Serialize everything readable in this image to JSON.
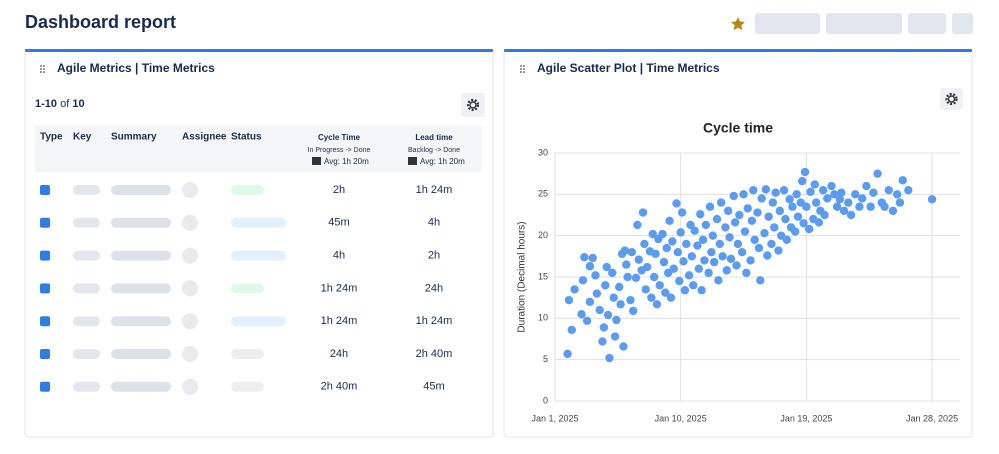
{
  "header": {
    "title": "Dashboard report"
  },
  "left_panel": {
    "title": "Agile Metrics | Time Metrics",
    "pagination": {
      "range": "1-10",
      "of": "of",
      "total": "10"
    },
    "columns": {
      "type": "Type",
      "key": "Key",
      "summary": "Summary",
      "assignee": "Assignee",
      "status": "Status",
      "cycle": {
        "label": "Cycle Time",
        "sub": "In Progress -> Done",
        "avg": "Avg: 1h 20m"
      },
      "lead": {
        "label": "Lead time",
        "sub": "Backlog -> Done",
        "avg": "Avg: 1h 20m"
      }
    },
    "rows": [
      {
        "cycle": "2h",
        "lead": "1h 24m",
        "status_color": "#dcfce7"
      },
      {
        "cycle": "45m",
        "lead": "4h",
        "status_color": "#e0f0ff"
      },
      {
        "cycle": "4h",
        "lead": "2h",
        "status_color": "#e0f0ff"
      },
      {
        "cycle": "1h 24m",
        "lead": "24h",
        "status_color": "#dcfce7"
      },
      {
        "cycle": "1h 24m",
        "lead": "1h 24m",
        "status_color": "#e0f0ff"
      },
      {
        "cycle": "24h",
        "lead": "2h 40m",
        "status_color": "#eeeeee"
      },
      {
        "cycle": "2h 40m",
        "lead": "45m",
        "status_color": "#eeeeee"
      }
    ]
  },
  "right_panel": {
    "title": "Agile Scatter Plot | Time Metrics"
  },
  "chart_data": {
    "type": "scatter",
    "title": "Cycle time",
    "y_label": "Duration (Decimal hours)",
    "color": "#5b9cf2",
    "grid": true,
    "xlim": [
      1,
      30
    ],
    "xticks": [
      {
        "value": 1,
        "label": "Jan 1, 2025"
      },
      {
        "value": 10,
        "label": "Jan 10, 2025"
      },
      {
        "value": 19,
        "label": "Jan 19, 2025"
      },
      {
        "value": 28,
        "label": "Jan 28, 2025"
      }
    ],
    "ylim": [
      0,
      30
    ],
    "yticks": [
      0,
      5,
      10,
      15,
      20,
      25,
      30
    ],
    "x": [
      1.9,
      2.0,
      2.2,
      2.4,
      2.9,
      3.0,
      3.1,
      3.3,
      3.5,
      3.7,
      3.9,
      3.5,
      4.0,
      4.2,
      4.4,
      4.5,
      4.6,
      4.7,
      4.8,
      4.9,
      5.1,
      5.2,
      5.3,
      5.4,
      5.6,
      5.7,
      5.8,
      5.9,
      6.0,
      6.1,
      6.2,
      6.4,
      6.5,
      6.6,
      6.8,
      6.9,
      7.0,
      7.2,
      7.3,
      7.4,
      7.5,
      7.6,
      7.8,
      7.9,
      8.0,
      8.1,
      8.2,
      8.3,
      8.4,
      8.5,
      8.7,
      8.8,
      8.9,
      9.0,
      9.1,
      9.2,
      9.3,
      9.4,
      9.5,
      9.7,
      9.8,
      9.9,
      10.0,
      10.1,
      10.2,
      10.3,
      10.4,
      10.6,
      10.7,
      10.8,
      10.9,
      11.0,
      11.2,
      11.3,
      11.4,
      11.5,
      11.6,
      11.7,
      11.8,
      12.0,
      12.1,
      12.2,
      12.3,
      12.4,
      12.6,
      12.7,
      12.8,
      12.9,
      13.0,
      13.2,
      13.3,
      13.4,
      13.5,
      13.6,
      13.8,
      13.9,
      14.0,
      14.1,
      14.2,
      14.4,
      14.5,
      14.6,
      14.7,
      14.8,
      15.0,
      15.1,
      15.2,
      15.3,
      15.5,
      15.6,
      15.7,
      15.8,
      16.0,
      16.1,
      16.2,
      16.3,
      16.5,
      16.6,
      16.7,
      16.8,
      17.0,
      17.1,
      17.2,
      17.4,
      17.5,
      17.6,
      17.8,
      17.9,
      18.0,
      18.2,
      18.3,
      18.4,
      18.6,
      18.7,
      18.8,
      18.9,
      19.0,
      19.2,
      19.3,
      19.5,
      19.6,
      19.7,
      19.9,
      20.0,
      20.2,
      20.3,
      20.5,
      20.8,
      21.0,
      21.2,
      21.4,
      21.5,
      21.7,
      22.0,
      22.2,
      22.5,
      22.8,
      23.0,
      23.3,
      23.6,
      23.8,
      24.1,
      24.4,
      24.6,
      24.9,
      25.2,
      25.5,
      25.7,
      25.9,
      26.3,
      28.0
    ],
    "values": [
      5.7,
      12.2,
      8.6,
      13.5,
      10.5,
      14.6,
      17.4,
      9.7,
      16.3,
      17.3,
      15.2,
      12.0,
      13.0,
      11.0,
      7.2,
      8.9,
      14.0,
      16.2,
      10.4,
      5.2,
      15.5,
      12.5,
      7.8,
      9.8,
      13.8,
      11.7,
      17.8,
      6.6,
      18.2,
      16.5,
      15.0,
      12.2,
      18.0,
      10.9,
      14.9,
      21.3,
      17.1,
      15.8,
      22.8,
      19.0,
      13.5,
      16.2,
      18.1,
      12.5,
      20.2,
      15.0,
      17.8,
      11.7,
      19.6,
      14.0,
      20.2,
      16.8,
      13.1,
      18.5,
      15.5,
      21.8,
      12.5,
      19.3,
      16.0,
      23.9,
      18.0,
      14.5,
      20.4,
      22.8,
      16.9,
      13.4,
      19.0,
      15.2,
      21.3,
      17.5,
      14.0,
      20.6,
      18.8,
      16.0,
      22.6,
      13.4,
      19.5,
      17.0,
      21.3,
      15.5,
      23.5,
      18.0,
      20.0,
      16.8,
      22.0,
      14.6,
      19.0,
      24.0,
      17.5,
      21.0,
      15.8,
      23.0,
      19.8,
      17.2,
      24.8,
      21.6,
      16.4,
      19.0,
      22.5,
      18.0,
      25.0,
      20.5,
      15.5,
      23.3,
      17.0,
      21.8,
      25.5,
      19.5,
      22.8,
      18.5,
      14.6,
      24.5,
      20.3,
      25.6,
      17.6,
      22.3,
      19.0,
      24.0,
      21.0,
      25.2,
      18.2,
      23.0,
      20.0,
      25.5,
      22.0,
      19.5,
      24.4,
      21.0,
      23.5,
      20.5,
      25.0,
      22.3,
      24.0,
      26.6,
      21.5,
      27.7,
      23.5,
      20.8,
      25.3,
      22.0,
      26.2,
      24.0,
      21.6,
      23.0,
      25.5,
      22.5,
      24.5,
      26.0,
      25.0,
      23.5,
      24.4,
      25.2,
      23.0,
      24.0,
      22.5,
      25.0,
      23.5,
      24.5,
      26.0,
      23.5,
      25.2,
      27.5,
      24.0,
      23.5,
      25.5,
      23.0,
      25.0,
      24.0,
      26.7,
      25.5,
      24.4
    ]
  }
}
